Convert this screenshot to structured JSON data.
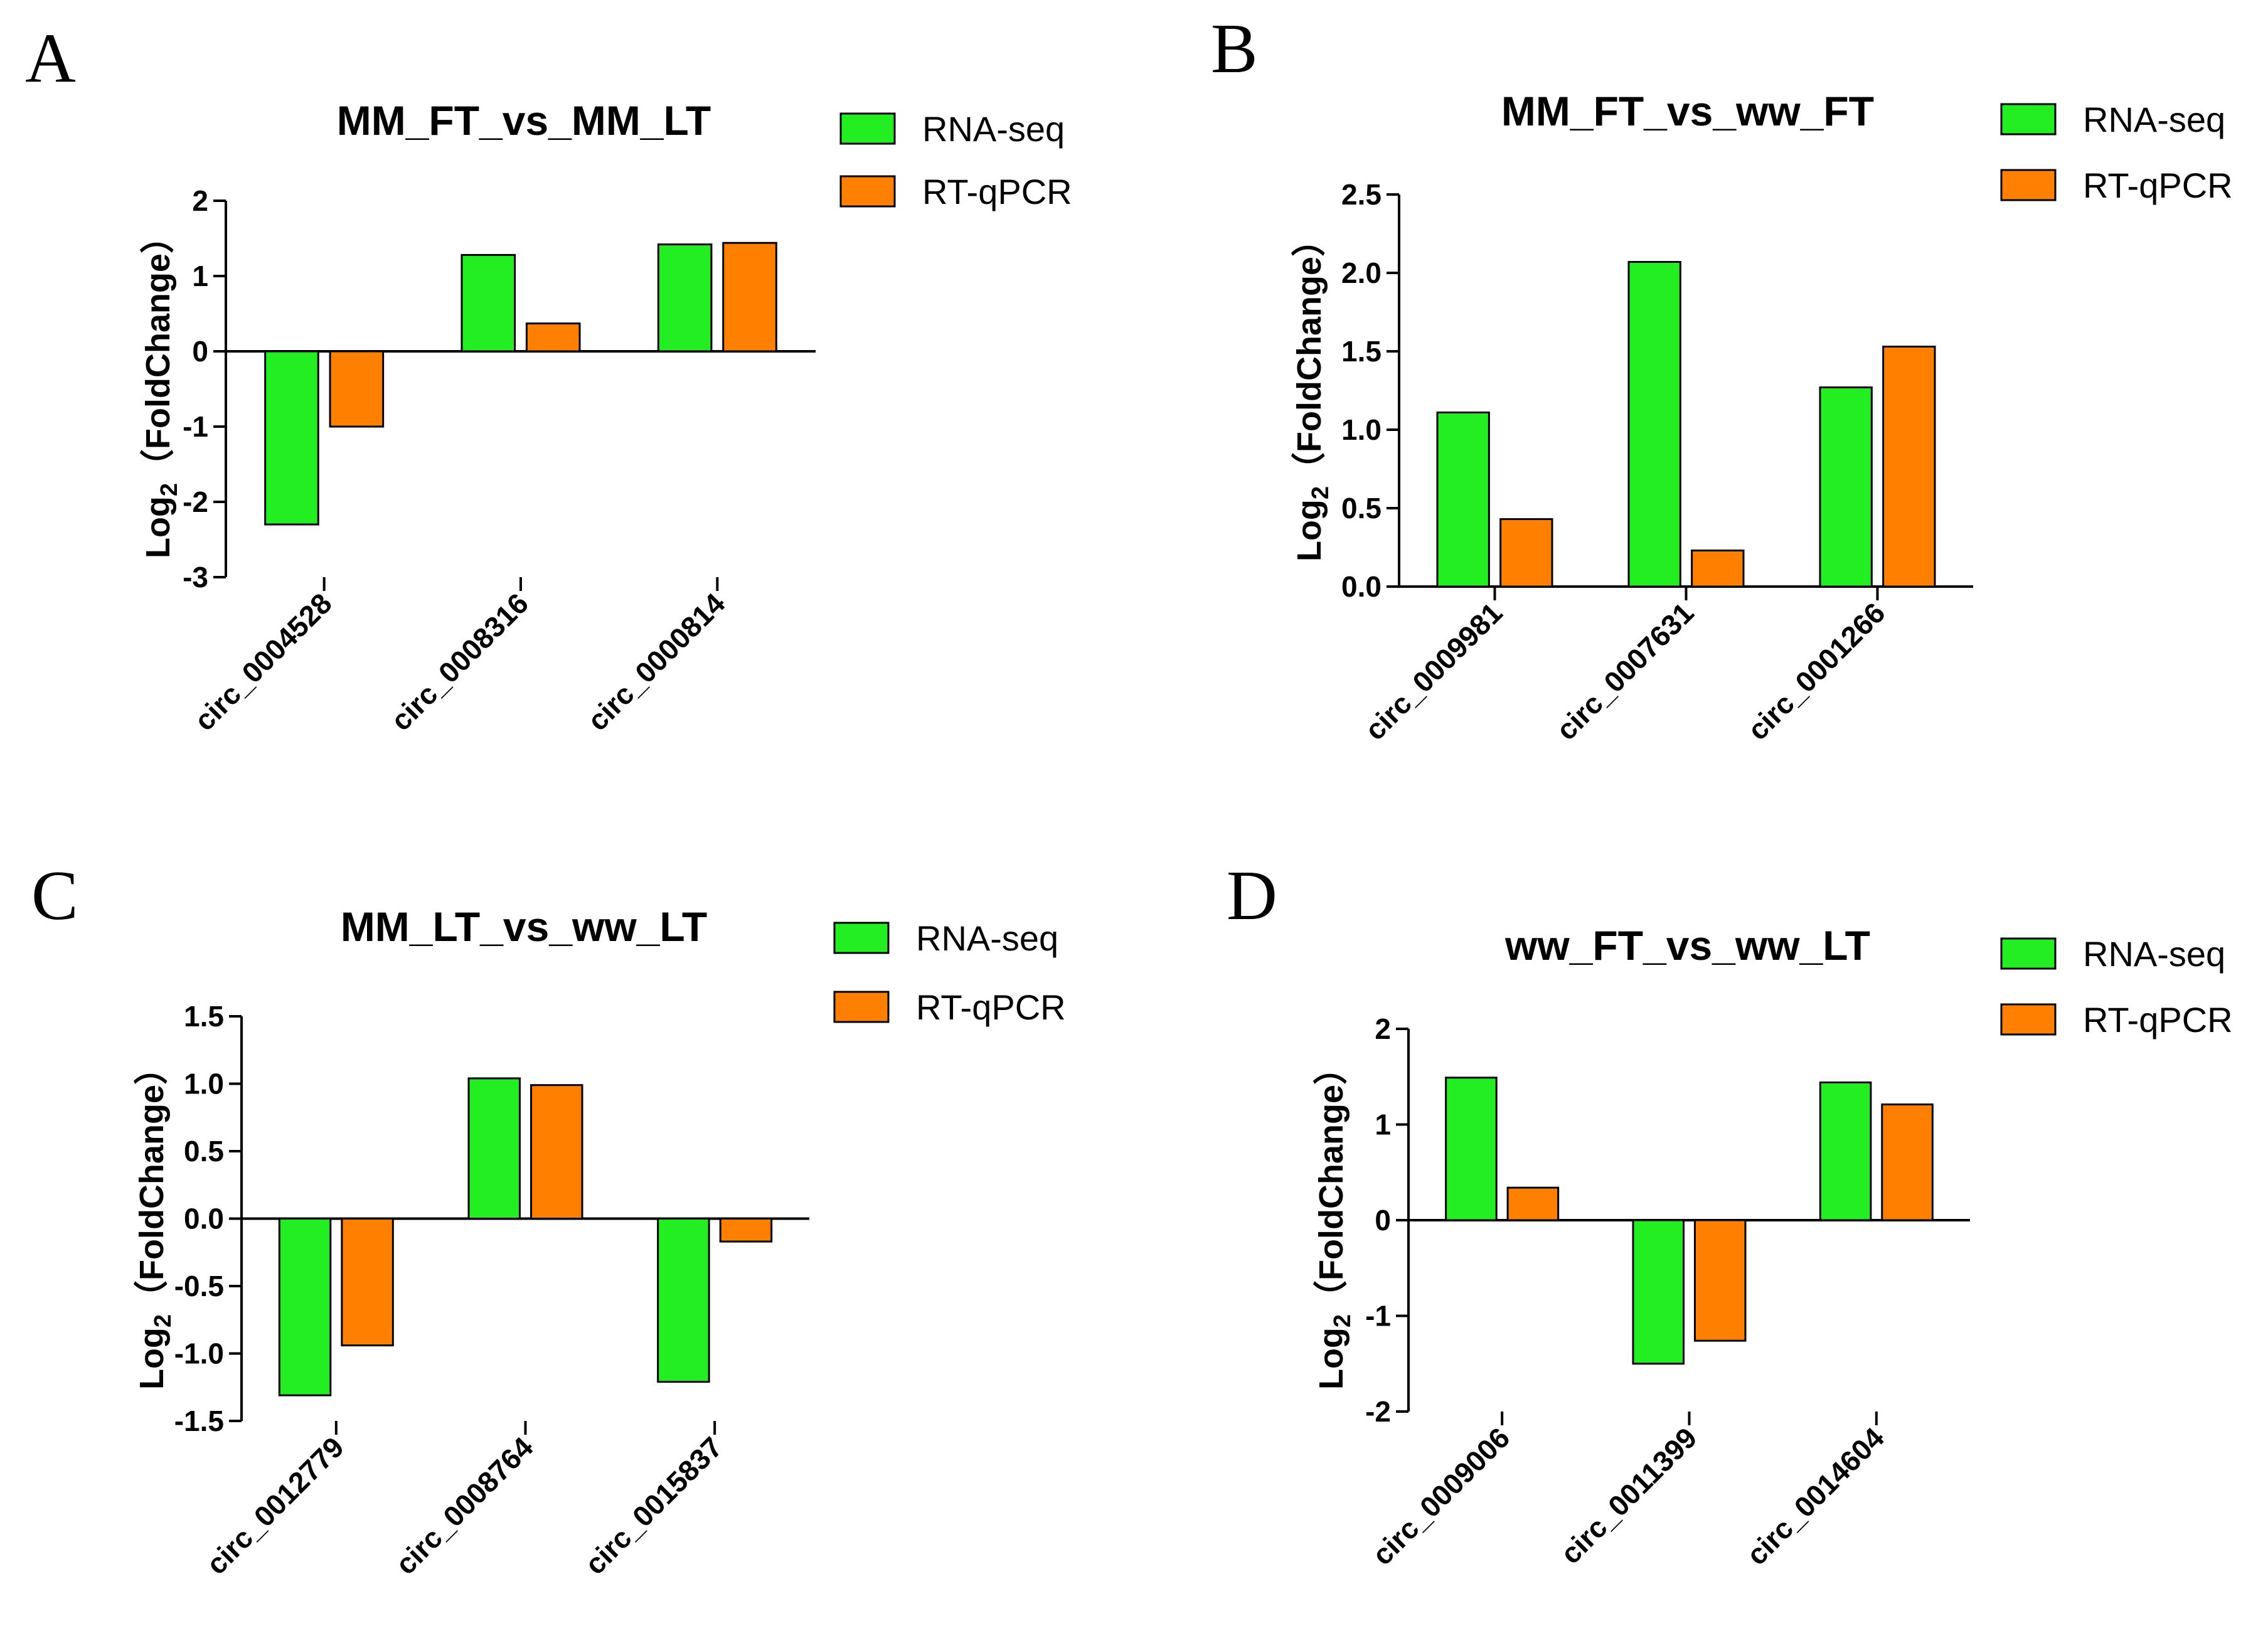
{
  "colors": {
    "rna_seq": "#22ee22",
    "rt_qpcr": "#ff8000",
    "axis": "#000000"
  },
  "chart_data": [
    {
      "panel": "A",
      "type": "bar",
      "title": "MM_FT_vs_MM_LT",
      "ylabel_main": "Log",
      "ylabel_sub": "2",
      "ylabel_rest": "（FoldChange）",
      "ylim": [
        -3,
        2
      ],
      "yticks": [
        {
          "value": -3,
          "label": "-3"
        },
        {
          "value": -2,
          "label": "-2"
        },
        {
          "value": -1,
          "label": "-1"
        },
        {
          "value": 0,
          "label": "0"
        },
        {
          "value": 1,
          "label": "1"
        },
        {
          "value": 2,
          "label": "2"
        }
      ],
      "categories": [
        "circ_0004528",
        "circ_0008316",
        "circ_0000814"
      ],
      "series": [
        {
          "name": "RNA-seq",
          "values": [
            -2.3,
            1.28,
            1.42
          ]
        },
        {
          "name": "RT-qPCR",
          "values": [
            -1.0,
            0.37,
            1.44
          ]
        }
      ]
    },
    {
      "panel": "B",
      "type": "bar",
      "title": "MM_FT_vs_ww_FT",
      "ylabel_main": "Log",
      "ylabel_sub": "2",
      "ylabel_rest": "（FoldChange）",
      "ylim": [
        0,
        2.5
      ],
      "yticks": [
        {
          "value": 0,
          "label": "0.0"
        },
        {
          "value": 0.5,
          "label": "0.5"
        },
        {
          "value": 1.0,
          "label": "1.0"
        },
        {
          "value": 1.5,
          "label": "1.5"
        },
        {
          "value": 2.0,
          "label": "2.0"
        },
        {
          "value": 2.5,
          "label": "2.5"
        }
      ],
      "categories": [
        "circ_0009981",
        "circ_0007631",
        "circ_0001266"
      ],
      "series": [
        {
          "name": "RNA-seq",
          "values": [
            1.11,
            2.07,
            1.27
          ]
        },
        {
          "name": "RT-qPCR",
          "values": [
            0.43,
            0.23,
            1.53
          ]
        }
      ]
    },
    {
      "panel": "C",
      "type": "bar",
      "title": "MM_LT_vs_ww_LT",
      "ylabel_main": "Log",
      "ylabel_sub": "2",
      "ylabel_rest": "（FoldChange）",
      "ylim": [
        -1.5,
        1.5
      ],
      "yticks": [
        {
          "value": -1.5,
          "label": "-1.5"
        },
        {
          "value": -1.0,
          "label": "-1.0"
        },
        {
          "value": -0.5,
          "label": "-0.5"
        },
        {
          "value": 0,
          "label": "0.0"
        },
        {
          "value": 0.5,
          "label": "0.5"
        },
        {
          "value": 1.0,
          "label": "1.0"
        },
        {
          "value": 1.5,
          "label": "1.5"
        }
      ],
      "categories": [
        "circ_0012779",
        "circ_0008764",
        "circ_0015837"
      ],
      "series": [
        {
          "name": "RNA-seq",
          "values": [
            -1.31,
            1.04,
            -1.21
          ]
        },
        {
          "name": "RT-qPCR",
          "values": [
            -0.94,
            0.99,
            -0.17
          ]
        }
      ]
    },
    {
      "panel": "D",
      "type": "bar",
      "title": "ww_FT_vs_ww_LT",
      "ylabel_main": "Log",
      "ylabel_sub": "2",
      "ylabel_rest": "（FoldChange）",
      "ylim": [
        -2,
        2
      ],
      "yticks": [
        {
          "value": -2,
          "label": "-2"
        },
        {
          "value": -1,
          "label": "-1"
        },
        {
          "value": 0,
          "label": "0"
        },
        {
          "value": 1,
          "label": "1"
        },
        {
          "value": 2,
          "label": "2"
        }
      ],
      "categories": [
        "circ_0009006",
        "circ_0011399",
        "circ_0014604"
      ],
      "series": [
        {
          "name": "RNA-seq",
          "values": [
            1.49,
            -1.5,
            1.44
          ]
        },
        {
          "name": "RT-qPCR",
          "values": [
            0.34,
            -1.26,
            1.21
          ]
        }
      ]
    }
  ]
}
